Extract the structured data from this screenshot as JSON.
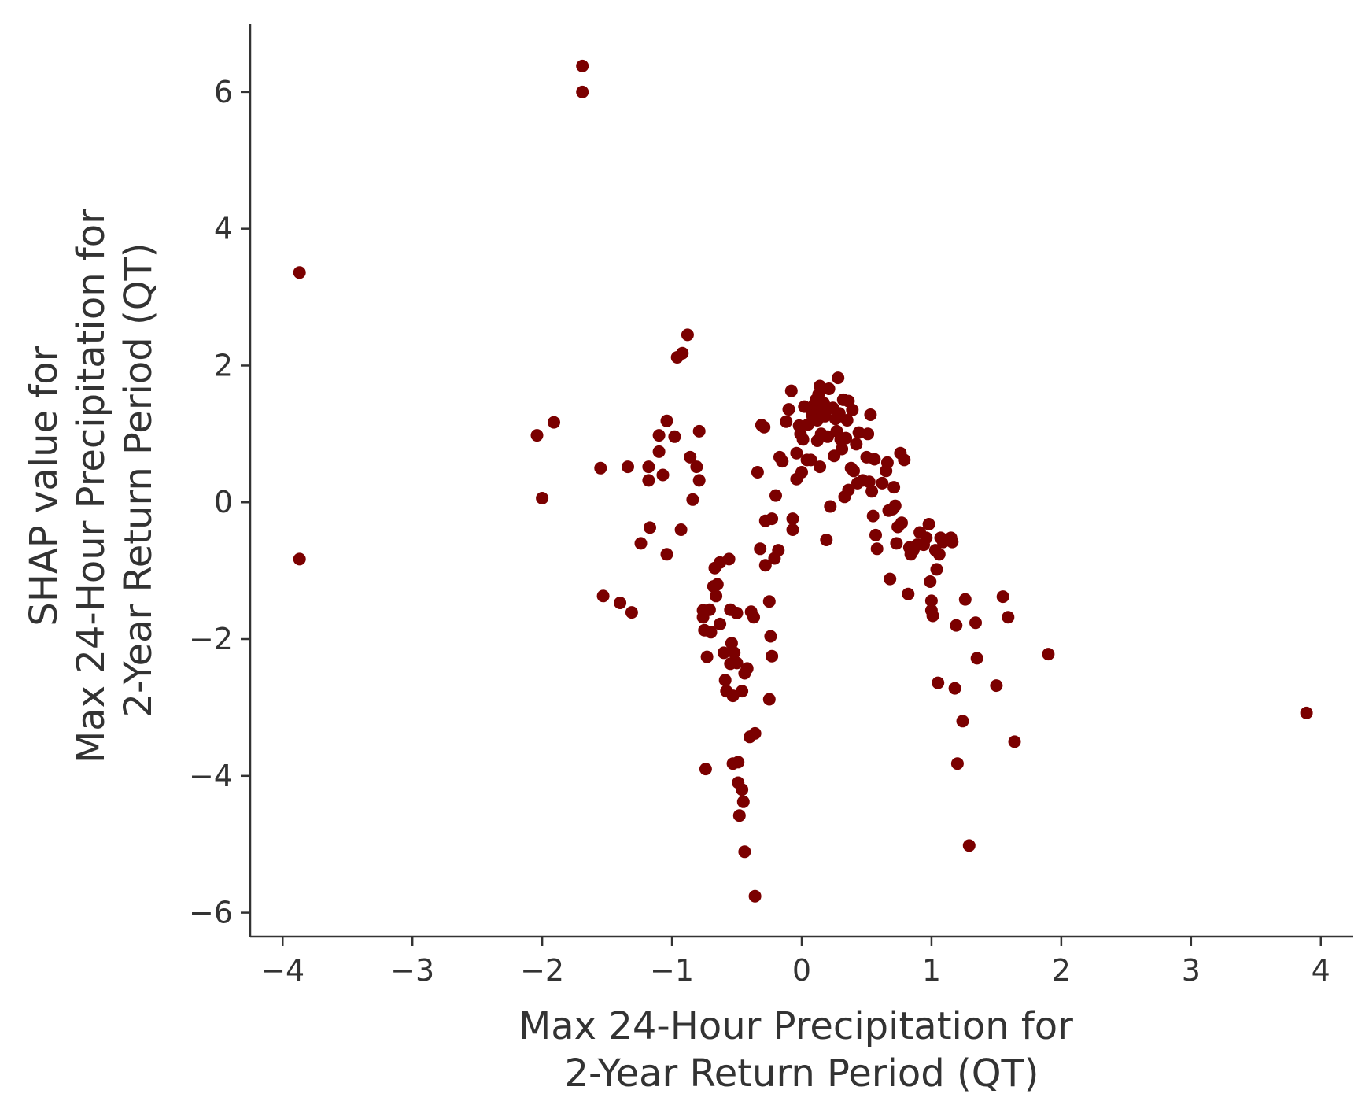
{
  "chart_data": {
    "type": "scatter",
    "xlabel": [
      "Max 24-Hour Precipitation for",
      "2-Year Return Period (QT)"
    ],
    "ylabel": [
      "SHAP value for",
      "Max 24-Hour Precipitation for",
      "2-Year Return Period (QT)"
    ],
    "xlim": [
      -4.25,
      4.25
    ],
    "ylim": [
      -6.35,
      7.0
    ],
    "xticks": [
      -4,
      -3,
      -2,
      -1,
      0,
      1,
      2,
      3,
      4
    ],
    "xtick_labels": [
      "−4",
      "−3",
      "−2",
      "−1",
      "0",
      "1",
      "2",
      "3",
      "4"
    ],
    "yticks": [
      -6,
      -4,
      -2,
      0,
      2,
      4,
      6
    ],
    "ytick_labels": [
      "−6",
      "−4",
      "−2",
      "0",
      "2",
      "4",
      "6"
    ],
    "grid": false,
    "point_color": "#7b0000",
    "axis_color": "#333333",
    "points": [
      [
        -1.69,
        6.38
      ],
      [
        -1.69,
        6.0
      ],
      [
        -3.87,
        3.36
      ],
      [
        -3.87,
        -0.83
      ],
      [
        -2.04,
        0.98
      ],
      [
        -1.91,
        1.17
      ],
      [
        -2.0,
        0.06
      ],
      [
        -1.55,
        0.5
      ],
      [
        -1.53,
        -1.37
      ],
      [
        -1.4,
        -1.47
      ],
      [
        -1.31,
        -1.61
      ],
      [
        -1.34,
        0.52
      ],
      [
        -1.24,
        -0.6
      ],
      [
        -1.18,
        0.32
      ],
      [
        -1.18,
        0.52
      ],
      [
        -1.17,
        -0.37
      ],
      [
        -1.1,
        0.98
      ],
      [
        -1.1,
        0.74
      ],
      [
        -1.07,
        0.4
      ],
      [
        -1.04,
        1.19
      ],
      [
        -1.04,
        -0.76
      ],
      [
        -0.98,
        0.96
      ],
      [
        -0.96,
        2.12
      ],
      [
        -0.92,
        2.18
      ],
      [
        -0.93,
        -0.4
      ],
      [
        -0.88,
        2.45
      ],
      [
        -0.86,
        0.66
      ],
      [
        -0.84,
        0.04
      ],
      [
        -0.81,
        0.52
      ],
      [
        -0.79,
        0.32
      ],
      [
        -0.79,
        1.04
      ],
      [
        -0.76,
        -1.58
      ],
      [
        -0.76,
        -1.68
      ],
      [
        -0.75,
        -1.87
      ],
      [
        -0.74,
        -3.9
      ],
      [
        -0.73,
        -2.26
      ],
      [
        -0.71,
        -1.57
      ],
      [
        -0.7,
        -1.9
      ],
      [
        -0.68,
        -1.23
      ],
      [
        -0.67,
        -0.96
      ],
      [
        -0.66,
        -1.37
      ],
      [
        -0.65,
        -1.2
      ],
      [
        -0.63,
        -1.78
      ],
      [
        -0.63,
        -0.88
      ],
      [
        -0.6,
        -2.2
      ],
      [
        -0.59,
        -2.6
      ],
      [
        -0.58,
        -2.76
      ],
      [
        -0.56,
        -0.83
      ],
      [
        -0.55,
        -1.57
      ],
      [
        -0.55,
        -2.36
      ],
      [
        -0.54,
        -2.06
      ],
      [
        -0.53,
        -2.83
      ],
      [
        -0.53,
        -3.82
      ],
      [
        -0.52,
        -2.2
      ],
      [
        -0.5,
        -2.35
      ],
      [
        -0.5,
        -1.62
      ],
      [
        -0.49,
        -3.8
      ],
      [
        -0.49,
        -4.1
      ],
      [
        -0.48,
        -4.58
      ],
      [
        -0.46,
        -2.76
      ],
      [
        -0.46,
        -4.2
      ],
      [
        -0.45,
        -4.38
      ],
      [
        -0.44,
        -5.11
      ],
      [
        -0.44,
        -2.5
      ],
      [
        -0.42,
        -2.43
      ],
      [
        -0.4,
        -3.43
      ],
      [
        -0.39,
        -1.6
      ],
      [
        -0.37,
        -1.68
      ],
      [
        -0.36,
        -3.38
      ],
      [
        -0.36,
        -5.76
      ],
      [
        -0.34,
        0.44
      ],
      [
        -0.32,
        -0.68
      ],
      [
        -0.31,
        1.13
      ],
      [
        -0.29,
        1.1
      ],
      [
        -0.28,
        -0.92
      ],
      [
        -0.28,
        -0.27
      ],
      [
        -0.25,
        -1.45
      ],
      [
        -0.25,
        -2.88
      ],
      [
        -0.24,
        -1.96
      ],
      [
        -0.23,
        -2.25
      ],
      [
        -0.23,
        -0.24
      ],
      [
        -0.21,
        -0.82
      ],
      [
        -0.2,
        0.1
      ],
      [
        -0.18,
        -0.7
      ],
      [
        -0.17,
        0.66
      ],
      [
        -0.15,
        0.6
      ],
      [
        -0.12,
        1.18
      ],
      [
        -0.1,
        1.36
      ],
      [
        -0.08,
        1.63
      ],
      [
        -0.07,
        -0.4
      ],
      [
        -0.07,
        -0.24
      ],
      [
        -0.04,
        0.34
      ],
      [
        -0.04,
        0.72
      ],
      [
        -0.02,
        1.12
      ],
      [
        -0.01,
        1.0
      ],
      [
        0.0,
        0.44
      ],
      [
        0.01,
        0.92
      ],
      [
        0.02,
        1.4
      ],
      [
        0.04,
        0.62
      ],
      [
        0.05,
        1.14
      ],
      [
        0.07,
        0.62
      ],
      [
        0.08,
        1.28
      ],
      [
        0.09,
        1.36
      ],
      [
        0.1,
        1.44
      ],
      [
        0.11,
        1.5
      ],
      [
        0.12,
        0.9
      ],
      [
        0.12,
        1.2
      ],
      [
        0.13,
        1.58
      ],
      [
        0.14,
        1.7
      ],
      [
        0.14,
        0.52
      ],
      [
        0.15,
        1.0
      ],
      [
        0.16,
        1.32
      ],
      [
        0.17,
        1.45
      ],
      [
        0.18,
        1.26
      ],
      [
        0.19,
        -0.55
      ],
      [
        0.2,
        0.96
      ],
      [
        0.21,
        1.66
      ],
      [
        0.22,
        -0.06
      ],
      [
        0.24,
        1.38
      ],
      [
        0.25,
        0.68
      ],
      [
        0.26,
        1.22
      ],
      [
        0.27,
        1.04
      ],
      [
        0.28,
        1.82
      ],
      [
        0.29,
        1.3
      ],
      [
        0.3,
        0.92
      ],
      [
        0.31,
        0.78
      ],
      [
        0.32,
        1.5
      ],
      [
        0.33,
        0.08
      ],
      [
        0.34,
        0.94
      ],
      [
        0.35,
        1.2
      ],
      [
        0.36,
        1.48
      ],
      [
        0.36,
        0.18
      ],
      [
        0.38,
        0.5
      ],
      [
        0.39,
        1.35
      ],
      [
        0.4,
        0.46
      ],
      [
        0.42,
        0.85
      ],
      [
        0.43,
        0.28
      ],
      [
        0.44,
        1.02
      ],
      [
        0.47,
        0.32
      ],
      [
        0.5,
        0.66
      ],
      [
        0.51,
        1.0
      ],
      [
        0.52,
        0.3
      ],
      [
        0.53,
        1.28
      ],
      [
        0.54,
        0.16
      ],
      [
        0.55,
        -0.2
      ],
      [
        0.56,
        0.63
      ],
      [
        0.57,
        -0.48
      ],
      [
        0.58,
        -0.68
      ],
      [
        0.62,
        0.28
      ],
      [
        0.65,
        0.46
      ],
      [
        0.66,
        0.58
      ],
      [
        0.67,
        -0.12
      ],
      [
        0.68,
        -1.12
      ],
      [
        0.7,
        -0.1
      ],
      [
        0.71,
        0.22
      ],
      [
        0.72,
        -0.05
      ],
      [
        0.73,
        -0.6
      ],
      [
        0.74,
        -0.36
      ],
      [
        0.76,
        0.72
      ],
      [
        0.77,
        -0.3
      ],
      [
        0.79,
        0.62
      ],
      [
        0.82,
        -1.34
      ],
      [
        0.83,
        -0.66
      ],
      [
        0.84,
        -0.76
      ],
      [
        0.86,
        -0.7
      ],
      [
        0.89,
        -0.62
      ],
      [
        0.91,
        -0.44
      ],
      [
        0.94,
        -0.62
      ],
      [
        0.96,
        -0.52
      ],
      [
        0.98,
        -0.32
      ],
      [
        0.99,
        -1.16
      ],
      [
        1.0,
        -1.44
      ],
      [
        1.0,
        -1.58
      ],
      [
        1.01,
        -1.66
      ],
      [
        1.03,
        -0.7
      ],
      [
        1.04,
        -0.98
      ],
      [
        1.05,
        -2.64
      ],
      [
        1.06,
        -0.76
      ],
      [
        1.07,
        -0.52
      ],
      [
        1.09,
        -0.58
      ],
      [
        1.15,
        -0.52
      ],
      [
        1.16,
        -0.58
      ],
      [
        1.18,
        -2.72
      ],
      [
        1.19,
        -1.8
      ],
      [
        1.2,
        -3.82
      ],
      [
        1.24,
        -3.2
      ],
      [
        1.26,
        -1.42
      ],
      [
        1.29,
        -5.02
      ],
      [
        1.34,
        -1.76
      ],
      [
        1.35,
        -2.28
      ],
      [
        1.5,
        -2.68
      ],
      [
        1.55,
        -1.38
      ],
      [
        1.59,
        -1.68
      ],
      [
        1.64,
        -3.5
      ],
      [
        1.9,
        -2.22
      ],
      [
        3.89,
        -3.08
      ]
    ]
  }
}
